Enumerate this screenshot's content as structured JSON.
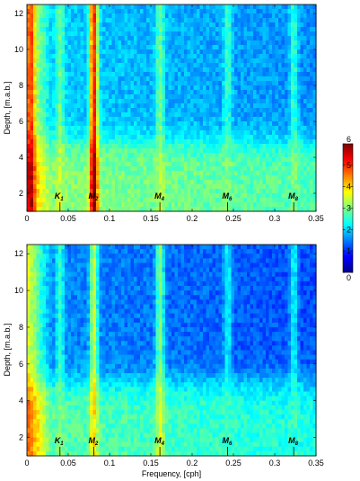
{
  "chart_data": [
    {
      "type": "heatmap",
      "panel": "top",
      "xlabel": "",
      "ylabel": "Depth, [m.a.b.]",
      "xlim": [
        0,
        0.35
      ],
      "ylim": [
        1,
        12.5
      ],
      "x_ticks": [
        "0",
        "0.05",
        "0.1",
        "0.15",
        "0.2",
        "0.25",
        "0.3",
        "0.35"
      ],
      "y_ticks": [
        "2",
        "4",
        "6",
        "8",
        "10",
        "12"
      ],
      "background": {
        "lower_depth_value": 3.1,
        "upper_depth_value": 2.0,
        "transition_depth": 4.9
      },
      "low_frequency_band": {
        "x_to": 0.03,
        "lower_value": 4.6,
        "upper_value": 3.9
      },
      "ridges": [
        {
          "x": 0.0045,
          "value": 5.8
        },
        {
          "x": 0.04,
          "value": 3.4
        },
        {
          "x": 0.081,
          "value": 6.0
        },
        {
          "x": 0.161,
          "value": 3.4
        },
        {
          "x": 0.243,
          "value": 3.0
        },
        {
          "x": 0.323,
          "value": 3.0
        }
      ],
      "constituents": [
        {
          "label": "K",
          "sub": "1",
          "x": 0.04
        },
        {
          "label": "M",
          "sub": "2",
          "x": 0.081
        },
        {
          "label": "M",
          "sub": "4",
          "x": 0.161
        },
        {
          "label": "M",
          "sub": "6",
          "x": 0.243
        },
        {
          "label": "M",
          "sub": "8",
          "x": 0.323
        }
      ]
    },
    {
      "type": "heatmap",
      "panel": "bottom",
      "xlabel": "Frequency, [cph]",
      "ylabel": "Depth, [m.a.b.]",
      "xlim": [
        0,
        0.35
      ],
      "ylim": [
        1,
        12.5
      ],
      "x_ticks": [
        "0",
        "0.05",
        "0.1",
        "0.15",
        "0.2",
        "0.25",
        "0.3",
        "0.35"
      ],
      "y_ticks": [
        "2",
        "4",
        "6",
        "8",
        "10",
        "12"
      ],
      "background": {
        "lower_depth_value": 2.8,
        "upper_depth_value": 1.6,
        "transition_depth": 5.0
      },
      "low_frequency_band": {
        "x_to": 0.03,
        "lower_value": 4.8,
        "upper_value": 3.6
      },
      "ridges": [
        {
          "x": 0.005,
          "value": 3.8
        },
        {
          "x": 0.04,
          "value": 3.0
        },
        {
          "x": 0.081,
          "value": 4.0
        },
        {
          "x": 0.161,
          "value": 3.6
        },
        {
          "x": 0.243,
          "value": 2.6
        },
        {
          "x": 0.323,
          "value": 2.6
        }
      ],
      "constituents": [
        {
          "label": "K",
          "sub": "1",
          "x": 0.04
        },
        {
          "label": "M",
          "sub": "2",
          "x": 0.081
        },
        {
          "label": "M",
          "sub": "4",
          "x": 0.161
        },
        {
          "label": "M",
          "sub": "6",
          "x": 0.243
        },
        {
          "label": "M",
          "sub": "8",
          "x": 0.323
        }
      ]
    }
  ],
  "colorbar": {
    "min": 0,
    "max": 6,
    "ticks": [
      "0",
      "1",
      "2",
      "3",
      "4",
      "5",
      "6"
    ],
    "colormap": "jet"
  }
}
